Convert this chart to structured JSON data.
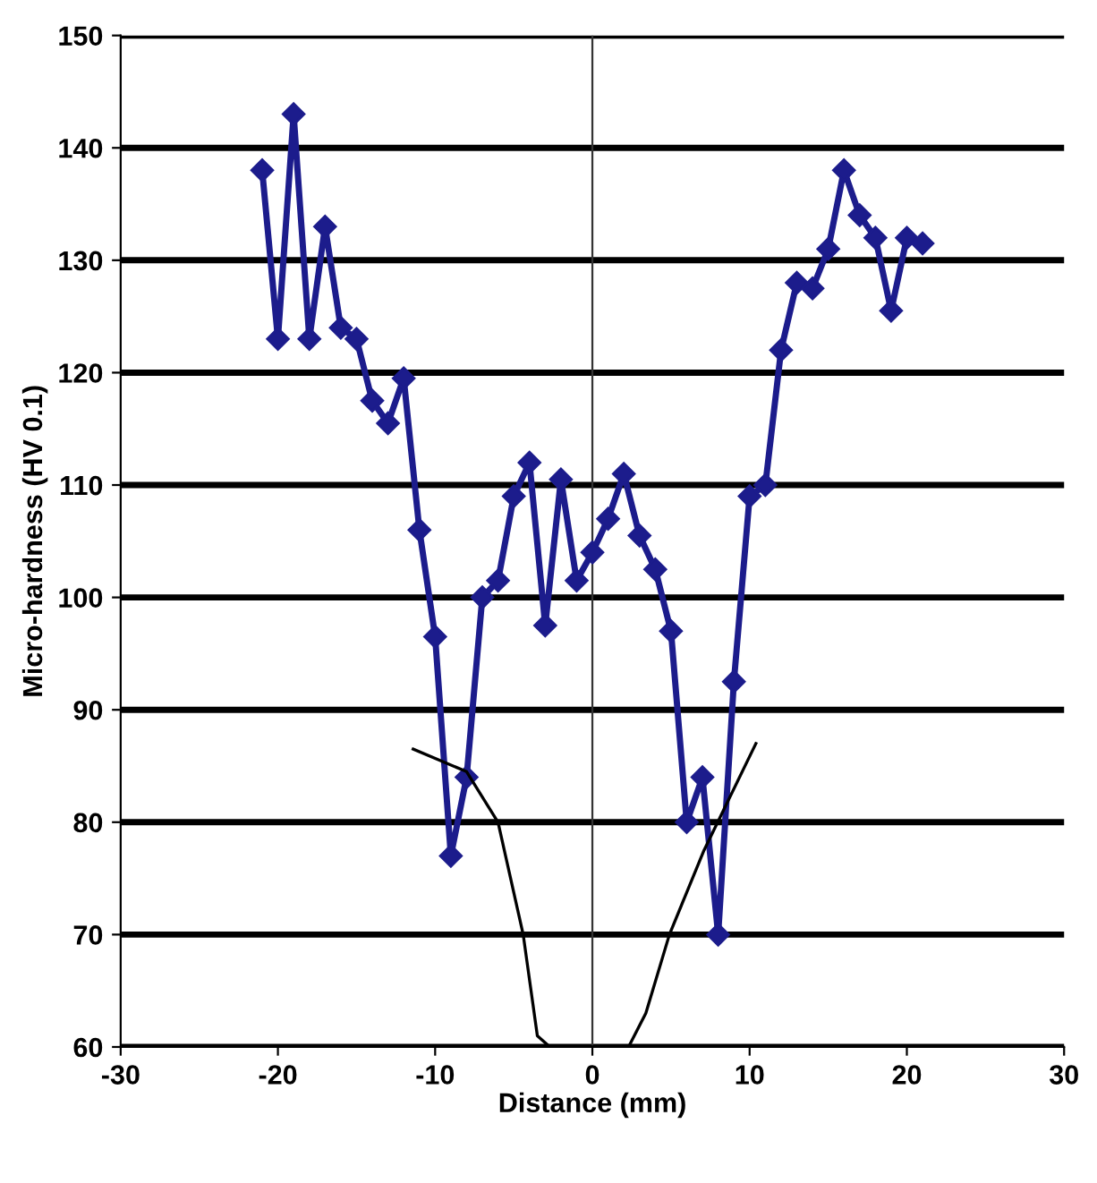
{
  "chart_data": {
    "type": "line",
    "xlabel": "Distance (mm)",
    "ylabel": "Micro-hardness (HV 0.1)",
    "xlim": [
      -30,
      30
    ],
    "xticks": [
      -30,
      -20,
      -10,
      0,
      10,
      20,
      30
    ],
    "ylim": [
      60,
      150
    ],
    "yticks": [
      60,
      70,
      80,
      90,
      100,
      110,
      120,
      130,
      140,
      150
    ],
    "grid": "y",
    "ref_lines": [
      {
        "axis": "x",
        "value": 0,
        "color": "#333333"
      }
    ],
    "series": [
      {
        "color": "#1c1c8c",
        "marker": "diamond",
        "x": [
          -21,
          -20,
          -19,
          -18,
          -17,
          -16,
          -15,
          -14,
          -13,
          -12,
          -11,
          -10,
          -9,
          -8,
          -7,
          -6,
          -5,
          -4,
          -3,
          -2,
          -1,
          0,
          1,
          2,
          3,
          4,
          5,
          6,
          7,
          8,
          9,
          10,
          11,
          12,
          13,
          14,
          15,
          16,
          17,
          18,
          19,
          20,
          21
        ],
        "values": [
          138,
          123,
          143,
          123,
          133,
          124,
          123,
          117.5,
          115.5,
          119.5,
          106,
          96.5,
          77,
          84,
          100,
          101.5,
          109,
          112,
          97.5,
          110.5,
          101.5,
          104,
          107,
          111,
          105.5,
          102.5,
          97,
          80,
          84,
          70,
          92.5,
          109,
          110,
          122,
          128,
          127.5,
          131,
          138,
          134,
          132,
          125.5,
          132,
          131.5
        ]
      },
      {
        "color": "#000000",
        "marker": "none",
        "x": [
          -11.4,
          -8,
          -6,
          -4.4,
          -3.5,
          -2.7,
          0,
          2.3,
          3.4,
          4.9,
          7.1,
          10.4
        ],
        "values": [
          86.5,
          84.5,
          80,
          70,
          61,
          60,
          60,
          60,
          63,
          70,
          77.5,
          87
        ]
      }
    ]
  }
}
